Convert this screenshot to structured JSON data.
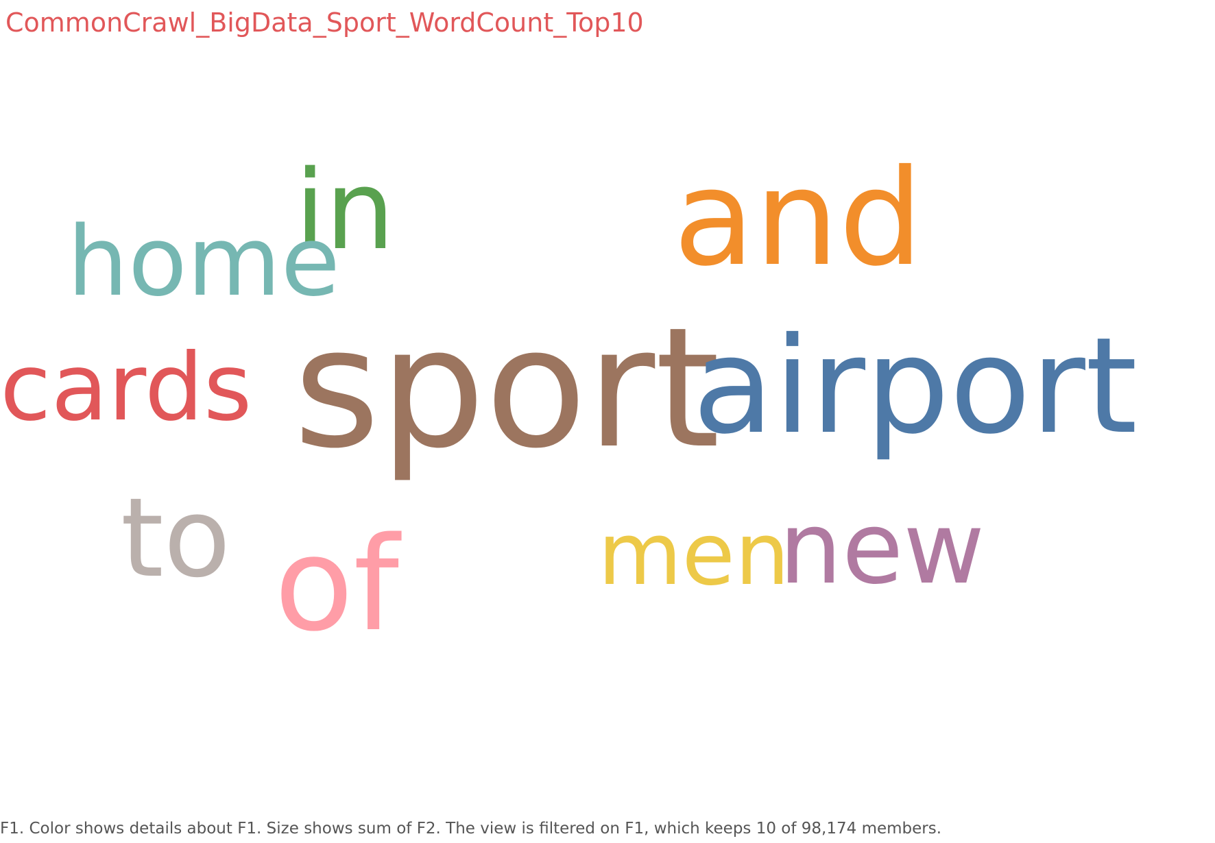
{
  "sheet": {
    "title": "CommonCrawl_BigData_Sport_WordCount_Top10",
    "footnote": "F1.  Color shows details about F1.  Size shows sum of F2. The view is filtered on F1, which keeps 10 of 98,174 members."
  },
  "chart_data": {
    "type": "word-cloud",
    "title": "CommonCrawl_BigData_Sport_WordCount_Top10",
    "color_field": "F1",
    "size_field": "F2",
    "filter_kept": 10,
    "filter_total": 98174,
    "words": [
      {
        "word": "sport",
        "weight": 100,
        "color": "#9c755f"
      },
      {
        "word": "airport",
        "weight": 80,
        "color": "#4e79a7"
      },
      {
        "word": "and",
        "weight": 80,
        "color": "#f28e2b"
      },
      {
        "word": "of",
        "weight": 78,
        "color": "#ff9da7"
      },
      {
        "word": "in",
        "weight": 66,
        "color": "#59a14f"
      },
      {
        "word": "to",
        "weight": 66,
        "color": "#bab0ac"
      },
      {
        "word": "new",
        "weight": 60,
        "color": "#b07aa1"
      },
      {
        "word": "home",
        "weight": 58,
        "color": "#76b7b2"
      },
      {
        "word": "cards",
        "weight": 56,
        "color": "#e15759"
      },
      {
        "word": "men",
        "weight": 52,
        "color": "#edc948"
      }
    ]
  }
}
